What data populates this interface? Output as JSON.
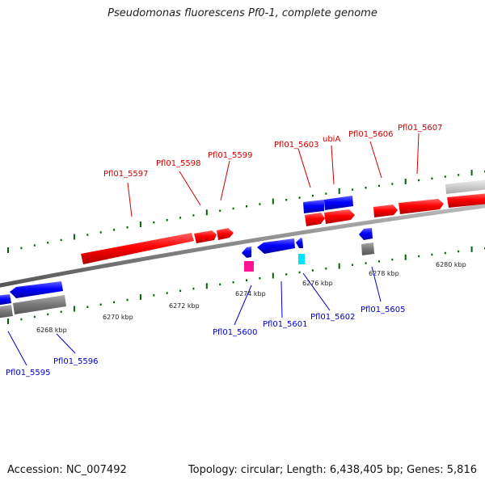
{
  "title": "Pseudomonas fluorescens Pf0-1, complete genome",
  "footer": {
    "accession": "Accession: NC_007492",
    "stats": "Topology: circular; Length: 6,438,405 bp; Genes: 5,816"
  },
  "colors": {
    "forward_gene": "#ff0000",
    "reverse_gene": "#0000ff",
    "forward_label": "#cc0000",
    "reverse_label": "#0000cc",
    "rna_magenta": "#ff1493",
    "rna_cyan": "#00ffff",
    "tick_green": "#006600"
  },
  "scale_labels": [
    "6268 kbp",
    "6270 kbp",
    "6272 kbp",
    "6274 kbp",
    "6276 kbp",
    "6278 kbp",
    "6280 kbp"
  ],
  "gene_labels": {
    "forward": [
      "Pfl01_5597",
      "Pfl01_5598",
      "Pfl01_5599",
      "Pfl01_5603",
      "ubiA",
      "Pfl01_5606",
      "Pfl01_5607"
    ],
    "reverse": [
      "Pfl01_5595",
      "Pfl01_5596",
      "Pfl01_5600",
      "Pfl01_5601",
      "Pfl01_5602",
      "Pfl01_5605"
    ]
  }
}
